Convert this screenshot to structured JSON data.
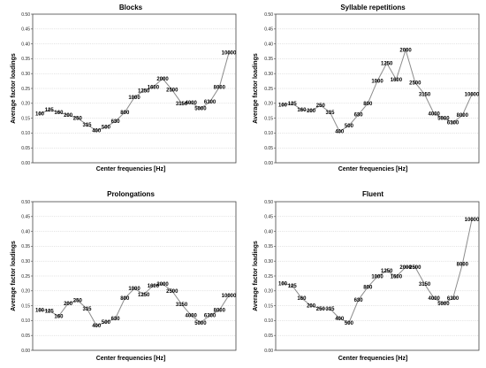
{
  "chart_data": [
    {
      "type": "line",
      "title": "Blocks",
      "xlabel": "Center frequencies [Hz]",
      "ylabel": "Average factor loadings",
      "ylim": [
        0,
        0.5
      ],
      "yticks": [
        "0.00",
        "0.05",
        "0.10",
        "0.15",
        "0.20",
        "0.25",
        "0.30",
        "0.35",
        "0.40",
        "0.45",
        "0.50"
      ],
      "grid": true,
      "categories": [
        "100",
        "125",
        "160",
        "200",
        "250",
        "315",
        "400",
        "500",
        "630",
        "800",
        "1000",
        "1250",
        "1600",
        "2000",
        "2500",
        "3150",
        "4000",
        "5000",
        "6300",
        "8000",
        "10000"
      ],
      "values": [
        0.165,
        0.178,
        0.17,
        0.16,
        0.15,
        0.128,
        0.108,
        0.12,
        0.14,
        0.17,
        0.22,
        0.243,
        0.255,
        0.283,
        0.245,
        0.2,
        0.202,
        0.183,
        0.205,
        0.255,
        0.37
      ]
    },
    {
      "type": "line",
      "title": "Syllable repetitions",
      "xlabel": "Center frequencies [Hz]",
      "ylabel": "Average factor loadings",
      "ylim": [
        0,
        0.5
      ],
      "yticks": [
        "0.00",
        "0.05",
        "0.10",
        "0.15",
        "0.20",
        "0.25",
        "0.30",
        "0.35",
        "0.40",
        "0.45",
        "0.50"
      ],
      "grid": true,
      "categories": [
        "100",
        "125",
        "160",
        "200",
        "250",
        "315",
        "400",
        "500",
        "630",
        "800",
        "1000",
        "1250",
        "1600",
        "2000",
        "2500",
        "3150",
        "4000",
        "5000",
        "6300",
        "8000",
        "10000"
      ],
      "values": [
        0.195,
        0.2,
        0.178,
        0.175,
        0.193,
        0.17,
        0.105,
        0.125,
        0.162,
        0.2,
        0.275,
        0.335,
        0.28,
        0.38,
        0.27,
        0.23,
        0.165,
        0.15,
        0.135,
        0.16,
        0.23
      ]
    },
    {
      "type": "line",
      "title": "Prolongations",
      "xlabel": "Center frequencies [Hz]",
      "ylabel": "Average factor loadings",
      "ylim": [
        0,
        0.5
      ],
      "yticks": [
        "0.00",
        "0.05",
        "0.10",
        "0.15",
        "0.20",
        "0.25",
        "0.30",
        "0.35",
        "0.40",
        "0.45",
        "0.50"
      ],
      "grid": true,
      "categories": [
        "100",
        "125",
        "160",
        "200",
        "250",
        "315",
        "400",
        "500",
        "630",
        "800",
        "1000",
        "1250",
        "1600",
        "2000",
        "2500",
        "3150",
        "4000",
        "5000",
        "6300",
        "8000",
        "10000"
      ],
      "values": [
        0.135,
        0.133,
        0.115,
        0.158,
        0.168,
        0.14,
        0.083,
        0.095,
        0.107,
        0.175,
        0.208,
        0.188,
        0.218,
        0.223,
        0.2,
        0.155,
        0.118,
        0.093,
        0.118,
        0.135,
        0.185
      ]
    },
    {
      "type": "line",
      "title": "Fluent",
      "xlabel": "Center frequencies [Hz]",
      "ylabel": "Average factor loadings",
      "ylim": [
        0,
        0.5
      ],
      "yticks": [
        "0.00",
        "0.05",
        "0.10",
        "0.15",
        "0.20",
        "0.25",
        "0.30",
        "0.35",
        "0.40",
        "0.45",
        "0.50"
      ],
      "grid": true,
      "categories": [
        "100",
        "125",
        "160",
        "200",
        "250",
        "315",
        "400",
        "500",
        "630",
        "800",
        "1000",
        "1250",
        "1600",
        "2000",
        "2500",
        "3150",
        "4000",
        "5000",
        "6300",
        "8000",
        "10000"
      ],
      "values": [
        0.225,
        0.218,
        0.175,
        0.15,
        0.14,
        0.14,
        0.107,
        0.093,
        0.17,
        0.213,
        0.248,
        0.268,
        0.248,
        0.28,
        0.28,
        0.223,
        0.175,
        0.158,
        0.175,
        0.29,
        0.44
      ]
    }
  ]
}
